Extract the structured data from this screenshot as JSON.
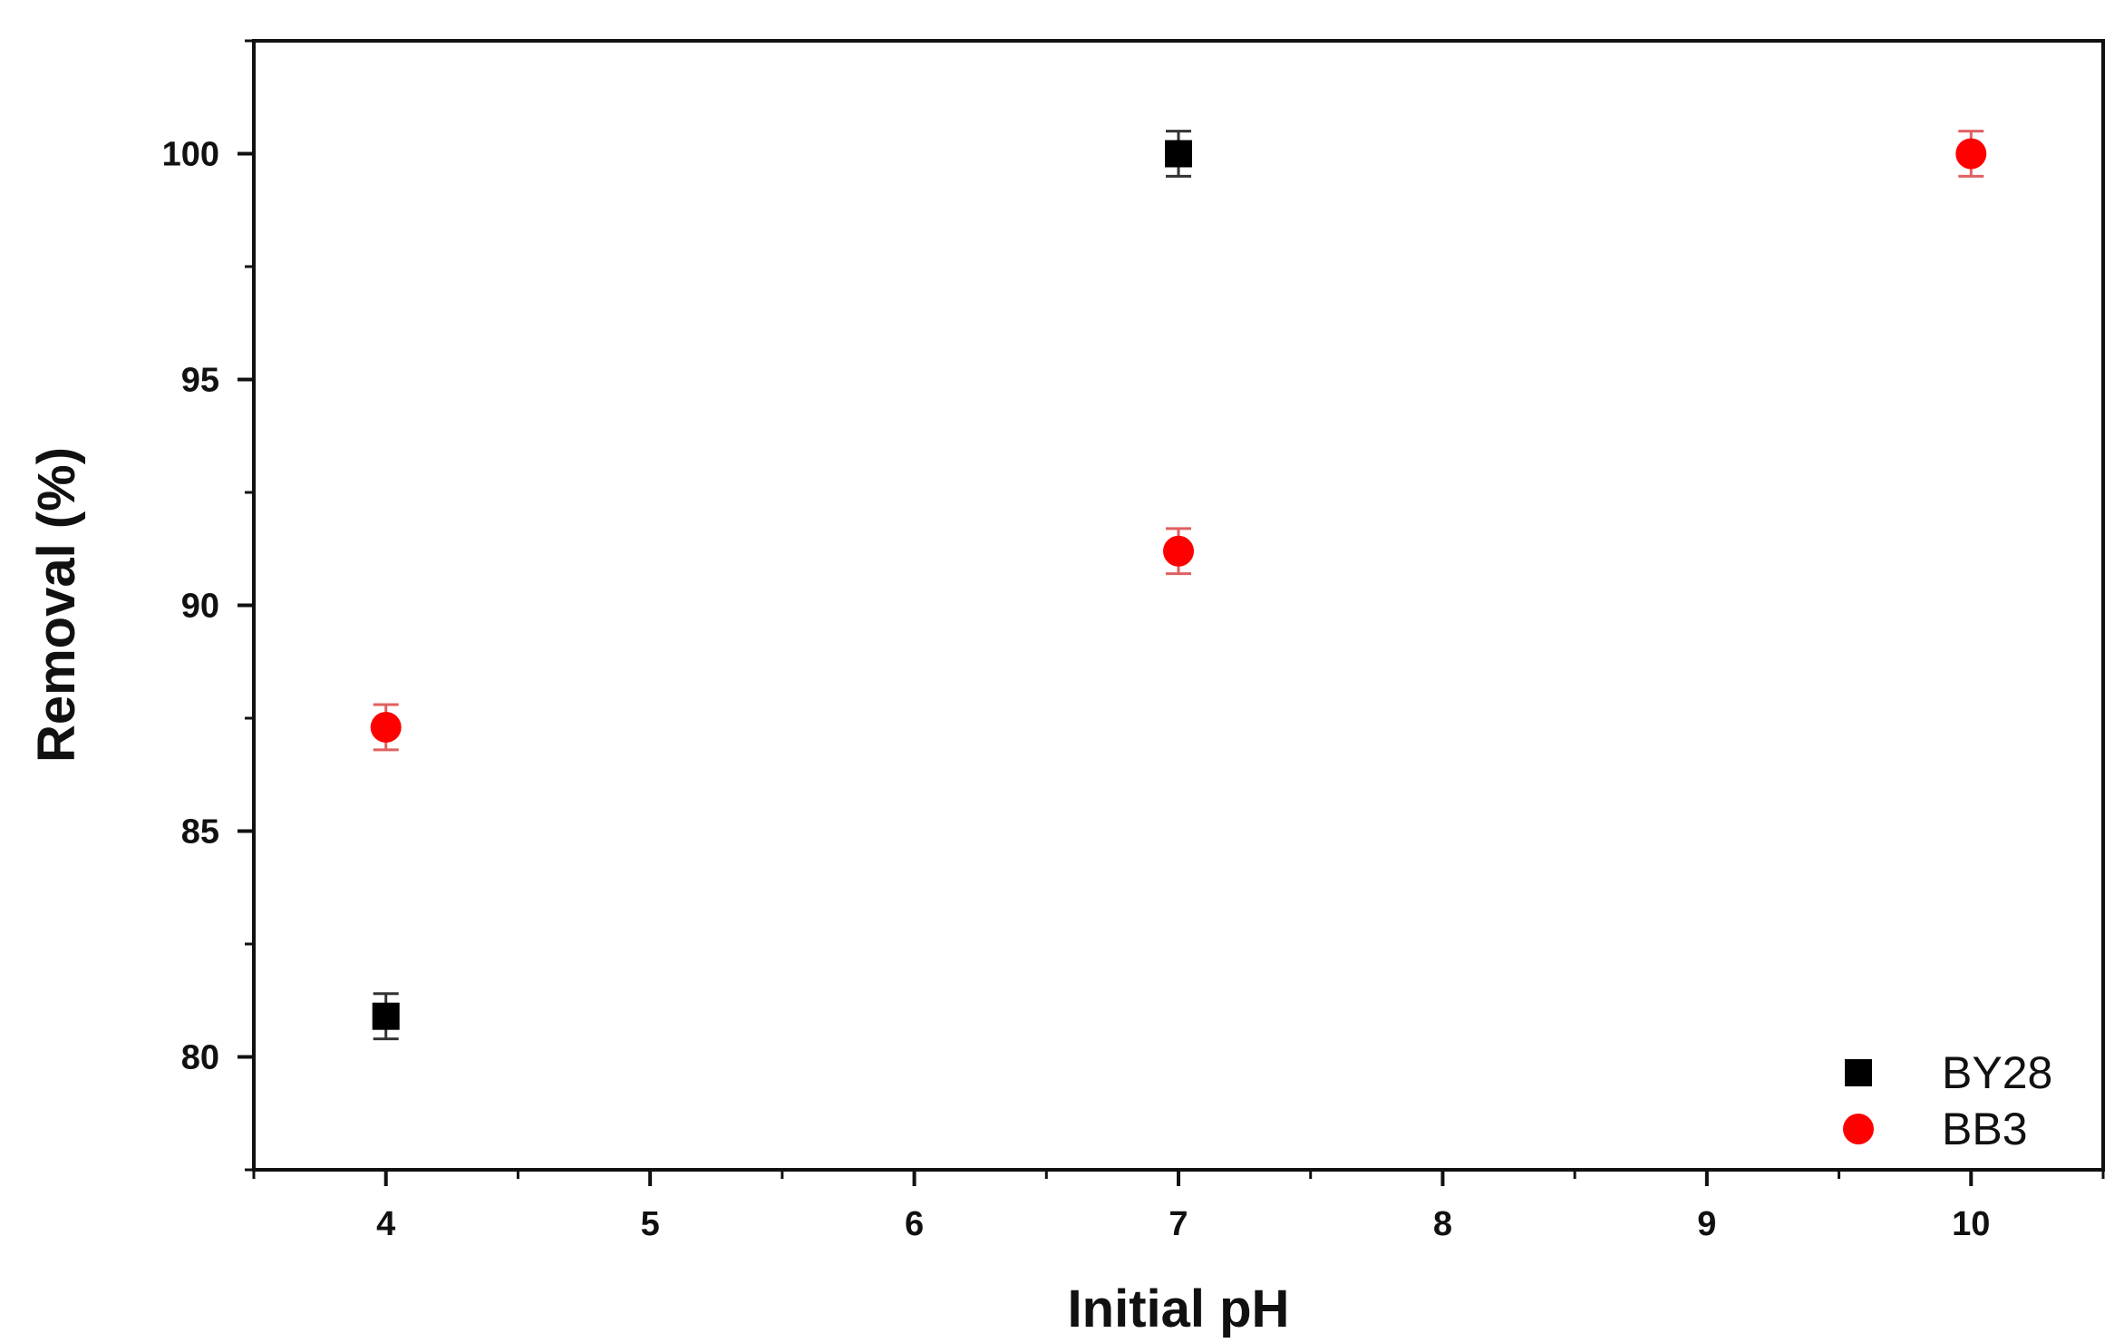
{
  "chart_data": {
    "type": "scatter",
    "title": "",
    "xlabel": "Initial pH",
    "ylabel": "Removal (%)",
    "xlim": [
      3.5,
      10.5
    ],
    "ylim": [
      77.5,
      102.5
    ],
    "x_ticks": [
      "4",
      "5",
      "6",
      "7",
      "8",
      "9",
      "10"
    ],
    "y_ticks": [
      "80",
      "85",
      "90",
      "95",
      "100"
    ],
    "grid": false,
    "legend_position": "bottom-right",
    "series": [
      {
        "name": "BY28",
        "marker": "square",
        "color": "#000000",
        "x": [
          4,
          7
        ],
        "y": [
          80.9,
          100.0
        ],
        "error": [
          0.5,
          0.5
        ]
      },
      {
        "name": "BB3",
        "marker": "circle",
        "color": "#ff0000",
        "x": [
          4,
          7,
          10
        ],
        "y": [
          87.3,
          91.2,
          100.0
        ],
        "error": [
          0.5,
          0.5,
          0.5
        ]
      }
    ]
  }
}
